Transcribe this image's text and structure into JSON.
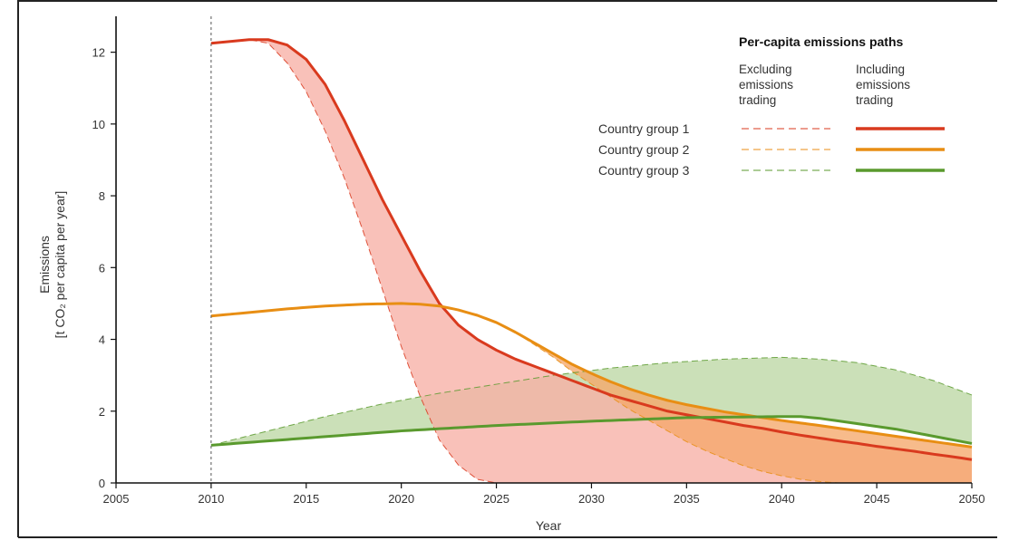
{
  "chart_data": {
    "type": "line",
    "ylabel_line1": "Emissions",
    "ylabel_line2": "[t CO₂ per capita per year]",
    "xlabel": "Year",
    "xlim": [
      2005,
      2050
    ],
    "ylim": [
      0,
      13
    ],
    "x_ticks": [
      "2005",
      "2010",
      "2015",
      "2020",
      "2025",
      "2030",
      "2035",
      "2040",
      "2045",
      "2050"
    ],
    "y_ticks": [
      "0",
      "2",
      "4",
      "6",
      "8",
      "10",
      "12"
    ],
    "reference_line_x": 2010,
    "legend": {
      "title": "Per-capita emissions paths",
      "col_excluding": [
        "Excluding",
        "emissions",
        "trading"
      ],
      "col_including": [
        "Including",
        "emissions",
        "trading"
      ]
    },
    "series": [
      {
        "name": "Country group 1",
        "color": "#d93a1e",
        "fill_color": "#f7b0a5",
        "including": {
          "x": [
            2010,
            2011,
            2012,
            2013,
            2014,
            2015,
            2016,
            2017,
            2018,
            2019,
            2020,
            2021,
            2022,
            2023,
            2024,
            2025,
            2026,
            2027,
            2028,
            2029,
            2030,
            2031,
            2032,
            2033,
            2034,
            2035,
            2036,
            2037,
            2038,
            2039,
            2040,
            2041,
            2042,
            2043,
            2044,
            2045,
            2046,
            2047,
            2048,
            2049,
            2050
          ],
          "y": [
            12.25,
            12.3,
            12.35,
            12.35,
            12.2,
            11.8,
            11.1,
            10.1,
            9.0,
            7.9,
            6.9,
            5.9,
            5.0,
            4.4,
            4.0,
            3.7,
            3.45,
            3.25,
            3.05,
            2.85,
            2.65,
            2.45,
            2.3,
            2.15,
            2.0,
            1.9,
            1.8,
            1.7,
            1.6,
            1.52,
            1.42,
            1.33,
            1.25,
            1.17,
            1.1,
            1.02,
            0.95,
            0.88,
            0.8,
            0.73,
            0.65
          ]
        },
        "excluding": {
          "x": [
            2010,
            2011,
            2012,
            2013,
            2014,
            2015,
            2016,
            2017,
            2018,
            2019,
            2020,
            2021,
            2022,
            2023,
            2024,
            2025,
            2030,
            2040,
            2050
          ],
          "y": [
            12.25,
            12.3,
            12.35,
            12.25,
            11.7,
            10.9,
            9.8,
            8.5,
            7.0,
            5.4,
            3.8,
            2.4,
            1.2,
            0.5,
            0.1,
            0.0,
            0.0,
            0.0,
            0.0
          ]
        }
      },
      {
        "name": "Country group 2",
        "color": "#e88e14",
        "fill_color": "#f5a86a",
        "including": {
          "x": [
            2010,
            2012,
            2014,
            2016,
            2018,
            2020,
            2021,
            2022,
            2023,
            2024,
            2025,
            2026,
            2027,
            2028,
            2029,
            2030,
            2031,
            2032,
            2033,
            2034,
            2035,
            2036,
            2037,
            2038,
            2039,
            2040,
            2042,
            2044,
            2046,
            2048,
            2050
          ],
          "y": [
            4.65,
            4.75,
            4.85,
            4.93,
            4.98,
            5.0,
            4.98,
            4.93,
            4.82,
            4.67,
            4.47,
            4.2,
            3.9,
            3.6,
            3.3,
            3.05,
            2.82,
            2.62,
            2.45,
            2.3,
            2.18,
            2.08,
            1.98,
            1.9,
            1.82,
            1.74,
            1.6,
            1.45,
            1.3,
            1.15,
            1.0
          ]
        },
        "excluding": {
          "x": [
            2010,
            2012,
            2014,
            2016,
            2018,
            2020,
            2021,
            2022,
            2023,
            2024,
            2025,
            2026,
            2027,
            2028,
            2029,
            2030,
            2031,
            2032,
            2033,
            2034,
            2035,
            2036,
            2037,
            2038,
            2039,
            2040,
            2041,
            2042,
            2043,
            2045,
            2050
          ],
          "y": [
            4.65,
            4.75,
            4.85,
            4.93,
            4.98,
            5.0,
            4.98,
            4.93,
            4.82,
            4.67,
            4.47,
            4.2,
            3.85,
            3.5,
            3.1,
            2.75,
            2.4,
            2.05,
            1.75,
            1.45,
            1.15,
            0.9,
            0.68,
            0.48,
            0.32,
            0.2,
            0.1,
            0.04,
            0.0,
            0.0,
            0.0
          ]
        }
      },
      {
        "name": "Country group 3",
        "color": "#5a9a2e",
        "fill_color": "#b9d6a0",
        "including": {
          "x": [
            2010,
            2015,
            2020,
            2025,
            2030,
            2035,
            2040,
            2041,
            2042,
            2044,
            2046,
            2048,
            2050
          ],
          "y": [
            1.05,
            1.25,
            1.45,
            1.6,
            1.72,
            1.82,
            1.85,
            1.85,
            1.8,
            1.65,
            1.5,
            1.3,
            1.1
          ]
        },
        "excluding": {
          "x": [
            2010,
            2013,
            2016,
            2019,
            2022,
            2025,
            2028,
            2031,
            2034,
            2037,
            2040,
            2042,
            2044,
            2046,
            2048,
            2050
          ],
          "y": [
            1.05,
            1.45,
            1.85,
            2.2,
            2.5,
            2.75,
            3.0,
            3.2,
            3.35,
            3.45,
            3.5,
            3.45,
            3.35,
            3.15,
            2.85,
            2.45
          ]
        }
      }
    ]
  }
}
